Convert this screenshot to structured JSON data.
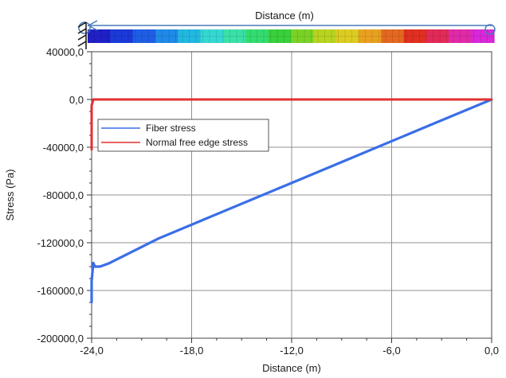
{
  "chart_data": {
    "type": "line",
    "title": "Distance (m)",
    "xlabel": "Distance (m)",
    "ylabel": "Stress (Pa)",
    "xlim": [
      -24,
      0
    ],
    "ylim": [
      -200000,
      40000
    ],
    "x_ticks": [
      -24,
      -18,
      -12,
      -6,
      0
    ],
    "x_tick_labels": [
      "-24,0",
      "-18,0",
      "-12,0",
      "-6,0",
      "0,0"
    ],
    "y_ticks": [
      40000,
      0,
      -40000,
      -80000,
      -120000,
      -160000,
      -200000
    ],
    "y_tick_labels": [
      "40000,0",
      "0,0",
      "-40000,0",
      "-80000,0",
      "-120000,0",
      "-160000,0",
      "-200000,0"
    ],
    "grid": true,
    "legend": "upper-left",
    "series": [
      {
        "name": "Fiber stress",
        "color": "#3a6ee8",
        "x": [
          -24.0,
          -24.0,
          -23.9,
          -23.8,
          -23.5,
          -23.0,
          -20.0,
          -16.0,
          -12.0,
          -8.0,
          -4.0,
          0.0
        ],
        "y": [
          -170000,
          -152000,
          -137000,
          -140000,
          -140000,
          -137500,
          -116500,
          -93200,
          -69900,
          -46600,
          -23300,
          0
        ]
      },
      {
        "name": "Normal free edge stress",
        "color": "#e03030",
        "x": [
          -24.0,
          -24.0,
          -23.9,
          -23.8,
          -20.0,
          -12.0,
          -6.0,
          0.0
        ],
        "y": [
          -42000,
          -5000,
          0,
          0,
          0,
          0,
          0,
          0
        ]
      }
    ],
    "colorbar_colors": [
      "#2020c8",
      "#1a3ad8",
      "#1e5ee6",
      "#1f8ae8",
      "#22b8e0",
      "#34d8d0",
      "#3ae0a8",
      "#33dc70",
      "#3ad03a",
      "#7ad226",
      "#b8d420",
      "#dccc22",
      "#e8a020",
      "#e46820",
      "#e03020",
      "#e22a58",
      "#e02aa8",
      "#d828d8"
    ]
  }
}
